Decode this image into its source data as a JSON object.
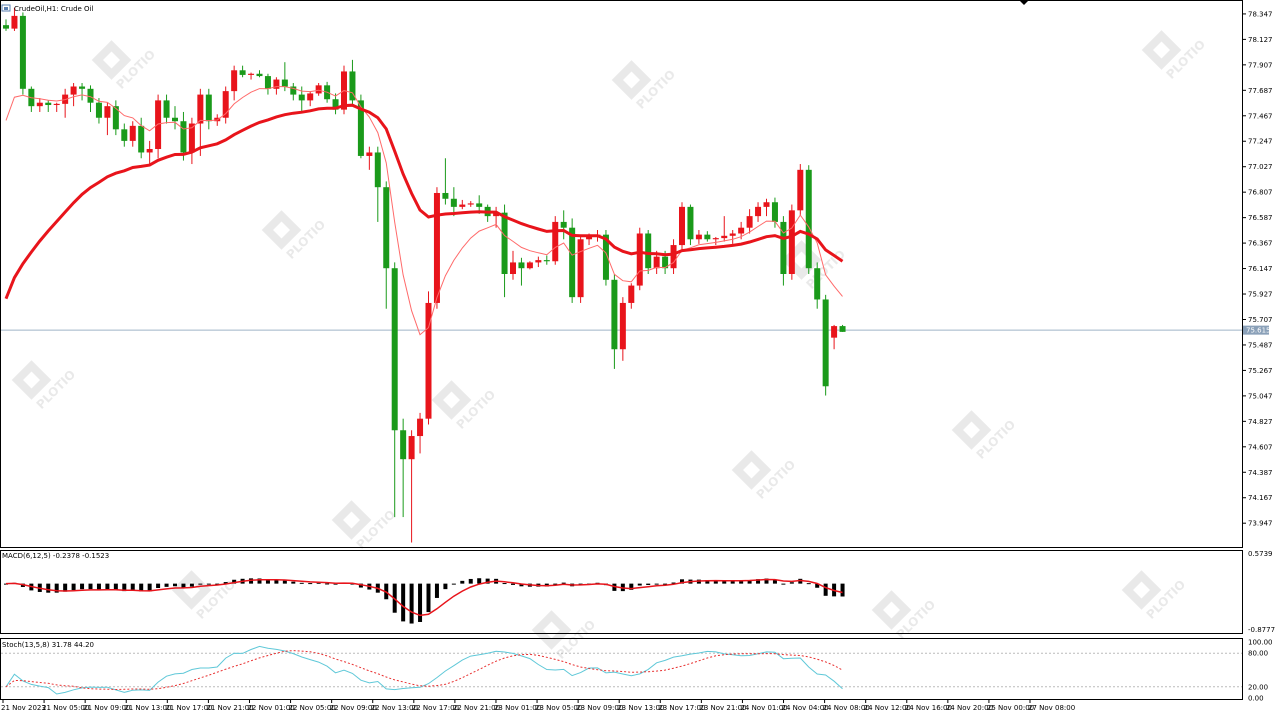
{
  "chart_data": {
    "type": "candlestick",
    "title": "CrudeOil,H1:  Crude Oil",
    "symbol": "CrudeOil",
    "timeframe": "H1",
    "ylim": [
      73.75,
      78.45
    ],
    "current_price": "75.615",
    "y_ticks": [
      "78.347",
      "78.127",
      "77.907",
      "77.687",
      "77.467",
      "77.247",
      "77.027",
      "76.807",
      "76.587",
      "76.367",
      "76.147",
      "75.927",
      "75.707",
      "75.487",
      "75.267",
      "75.047",
      "74.827",
      "74.607",
      "74.387",
      "74.167",
      "73.947"
    ],
    "x_ticks": [
      "21 Nov 2023",
      "21 Nov 05:00",
      "21 Nov 09:00",
      "21 Nov 13:00",
      "21 Nov 17:00",
      "21 Nov 21:00",
      "22 Nov 01:00",
      "22 Nov 05:00",
      "22 Nov 09:00",
      "22 Nov 13:00",
      "22 Nov 17:00",
      "22 Nov 21:00",
      "23 Nov 01:00",
      "23 Nov 05:00",
      "23 Nov 09:00",
      "23 Nov 13:00",
      "23 Nov 17:00",
      "23 Nov 21:00",
      "24 Nov 01:00",
      "24 Nov 04:00",
      "24 Nov 08:00",
      "24 Nov 12:00",
      "24 Nov 16:00",
      "24 Nov 20:00",
      "25 Nov 00:00",
      "27 Nov 08:00"
    ],
    "candles": [
      [
        78.25,
        78.3,
        78.2,
        78.22
      ],
      [
        78.22,
        78.4,
        78.2,
        78.33
      ],
      [
        78.33,
        78.36,
        77.65,
        77.7
      ],
      [
        77.7,
        77.72,
        77.5,
        77.55
      ],
      [
        77.55,
        77.62,
        77.5,
        77.58
      ],
      [
        77.58,
        77.6,
        77.5,
        77.56
      ],
      [
        77.56,
        77.58,
        77.5,
        77.57
      ],
      [
        77.57,
        77.7,
        77.45,
        77.65
      ],
      [
        77.65,
        77.75,
        77.55,
        77.72
      ],
      [
        77.72,
        77.75,
        77.6,
        77.7
      ],
      [
        77.7,
        77.73,
        77.5,
        77.58
      ],
      [
        77.58,
        77.62,
        77.4,
        77.45
      ],
      [
        77.45,
        77.58,
        77.3,
        77.55
      ],
      [
        77.55,
        77.6,
        77.3,
        77.35
      ],
      [
        77.35,
        77.4,
        77.2,
        77.25
      ],
      [
        77.25,
        77.42,
        77.2,
        77.38
      ],
      [
        77.38,
        77.45,
        77.1,
        77.15
      ],
      [
        77.15,
        77.25,
        77.05,
        77.18
      ],
      [
        77.18,
        77.65,
        77.1,
        77.6
      ],
      [
        77.6,
        77.65,
        77.4,
        77.45
      ],
      [
        77.45,
        77.55,
        77.35,
        77.42
      ],
      [
        77.42,
        77.5,
        77.08,
        77.15
      ],
      [
        77.15,
        77.45,
        77.05,
        77.4
      ],
      [
        77.4,
        77.7,
        77.12,
        77.65
      ],
      [
        77.65,
        77.7,
        77.35,
        77.42
      ],
      [
        77.42,
        77.48,
        77.38,
        77.45
      ],
      [
        77.45,
        77.72,
        77.4,
        77.68
      ],
      [
        77.68,
        77.9,
        77.6,
        77.86
      ],
      [
        77.86,
        77.9,
        77.8,
        77.82
      ],
      [
        77.82,
        77.84,
        77.78,
        77.83
      ],
      [
        77.83,
        77.86,
        77.8,
        77.81
      ],
      [
        77.81,
        77.83,
        77.65,
        77.7
      ],
      [
        77.7,
        77.8,
        77.65,
        77.78
      ],
      [
        77.78,
        77.93,
        77.68,
        77.72
      ],
      [
        77.72,
        77.75,
        77.6,
        77.65
      ],
      [
        77.65,
        77.72,
        77.5,
        77.6
      ],
      [
        77.6,
        77.68,
        77.55,
        77.66
      ],
      [
        77.66,
        77.75,
        77.64,
        77.73
      ],
      [
        77.73,
        77.76,
        77.58,
        77.61
      ],
      [
        77.61,
        77.66,
        77.48,
        77.52
      ],
      [
        77.52,
        77.9,
        77.48,
        77.85
      ],
      [
        77.85,
        77.95,
        77.55,
        77.6
      ],
      [
        77.6,
        77.65,
        77.1,
        77.12
      ],
      [
        77.12,
        77.2,
        77.0,
        77.15
      ],
      [
        77.15,
        77.2,
        76.55,
        76.85
      ],
      [
        76.85,
        76.9,
        75.8,
        76.15
      ],
      [
        76.15,
        76.2,
        74.0,
        74.75
      ],
      [
        74.75,
        74.85,
        74.0,
        74.5
      ],
      [
        74.5,
        74.75,
        73.78,
        74.7
      ],
      [
        74.7,
        74.9,
        74.55,
        74.85
      ],
      [
        74.85,
        75.95,
        74.8,
        75.85
      ],
      [
        75.85,
        76.85,
        75.8,
        76.8
      ],
      [
        76.8,
        77.1,
        76.7,
        76.75
      ],
      [
        76.75,
        76.85,
        76.6,
        76.68
      ],
      [
        76.68,
        76.74,
        76.66,
        76.7
      ],
      [
        76.7,
        76.73,
        76.68,
        76.71
      ],
      [
        76.71,
        76.78,
        76.62,
        76.68
      ],
      [
        76.68,
        76.7,
        76.55,
        76.6
      ],
      [
        76.6,
        76.68,
        76.5,
        76.63
      ],
      [
        76.63,
        76.7,
        75.9,
        76.1
      ],
      [
        76.1,
        76.3,
        76.05,
        76.2
      ],
      [
        76.2,
        76.24,
        76.0,
        76.15
      ],
      [
        76.15,
        76.21,
        76.14,
        76.2
      ],
      [
        76.2,
        76.25,
        76.16,
        76.22
      ],
      [
        76.22,
        76.26,
        76.18,
        76.21
      ],
      [
        76.21,
        76.6,
        76.18,
        76.55
      ],
      [
        76.55,
        76.65,
        76.4,
        76.5
      ],
      [
        76.5,
        76.58,
        75.85,
        75.9
      ],
      [
        75.9,
        76.42,
        75.85,
        76.4
      ],
      [
        76.4,
        76.45,
        76.35,
        76.42
      ],
      [
        76.42,
        76.48,
        76.38,
        76.44
      ],
      [
        76.44,
        76.48,
        76.0,
        76.05
      ],
      [
        76.05,
        76.1,
        75.28,
        75.45
      ],
      [
        75.45,
        75.9,
        75.35,
        75.85
      ],
      [
        75.85,
        76.02,
        75.8,
        76.0
      ],
      [
        76.0,
        76.5,
        75.96,
        76.45
      ],
      [
        76.45,
        76.48,
        76.1,
        76.15
      ],
      [
        76.15,
        76.3,
        76.1,
        76.25
      ],
      [
        76.25,
        76.3,
        76.1,
        76.15
      ],
      [
        76.15,
        76.4,
        76.1,
        76.35
      ],
      [
        76.35,
        76.72,
        76.3,
        76.68
      ],
      [
        76.68,
        76.7,
        76.35,
        76.4
      ],
      [
        76.4,
        76.48,
        76.36,
        76.44
      ],
      [
        76.44,
        76.47,
        76.38,
        76.4
      ],
      [
        76.4,
        76.42,
        76.35,
        76.41
      ],
      [
        76.41,
        76.6,
        76.38,
        76.43
      ],
      [
        76.43,
        76.48,
        76.36,
        76.45
      ],
      [
        76.45,
        76.55,
        76.4,
        76.5
      ],
      [
        76.5,
        76.66,
        76.45,
        76.6
      ],
      [
        76.6,
        76.72,
        76.55,
        76.68
      ],
      [
        76.68,
        76.75,
        76.6,
        76.72
      ],
      [
        76.72,
        76.76,
        76.5,
        76.55
      ],
      [
        76.55,
        76.6,
        76.0,
        76.1
      ],
      [
        76.1,
        76.7,
        76.05,
        76.65
      ],
      [
        76.65,
        77.05,
        76.6,
        77.0
      ],
      [
        77.0,
        77.04,
        76.1,
        76.15
      ],
      [
        76.15,
        76.2,
        75.8,
        75.88
      ],
      [
        75.88,
        75.92,
        75.05,
        75.13
      ],
      [
        75.55,
        75.66,
        75.45,
        75.65
      ],
      [
        75.65,
        75.66,
        75.6,
        75.6
      ]
    ],
    "indicators": [
      {
        "name": "MA fast",
        "color": "#ff6a6a"
      },
      {
        "name": "MA slow",
        "color": "#e8141b"
      }
    ],
    "macd": {
      "label": "MACD(6,12,5) -0.2378 -0.1523",
      "ylim": [
        -0.8777,
        0.5739
      ],
      "y_ticks": [
        "0.5739",
        "-0.8777"
      ]
    },
    "stoch": {
      "label": "Stoch(13,5,8) 31.78 44.20",
      "ylim": [
        0,
        100
      ],
      "y_ticks": [
        "100.00",
        "80.00",
        "20.00",
        "0.00"
      ]
    },
    "watermark": "PLOTIO"
  }
}
